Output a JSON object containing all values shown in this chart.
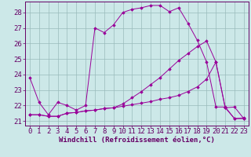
{
  "xlabel": "Windchill (Refroidissement éolien,°C)",
  "bg_color": "#cce8e8",
  "line_color": "#990099",
  "grid_color": "#99bbbb",
  "border_color": "#660066",
  "xlim": [
    -0.5,
    23.5
  ],
  "ylim": [
    20.7,
    28.7
  ],
  "xticks": [
    0,
    1,
    2,
    3,
    4,
    5,
    6,
    7,
    8,
    9,
    10,
    11,
    12,
    13,
    14,
    15,
    16,
    17,
    18,
    19,
    20,
    21,
    22,
    23
  ],
  "yticks": [
    21,
    22,
    23,
    24,
    25,
    26,
    27,
    28
  ],
  "line1_x": [
    0,
    1,
    2,
    3,
    4,
    5,
    6,
    7,
    8,
    9,
    10,
    11,
    12,
    13,
    14,
    15,
    16,
    17,
    18,
    19,
    20,
    21,
    22,
    23
  ],
  "line1_y": [
    23.8,
    22.2,
    21.4,
    22.2,
    22.0,
    21.7,
    22.0,
    27.0,
    26.7,
    27.2,
    28.0,
    28.2,
    28.3,
    28.45,
    28.45,
    28.05,
    28.3,
    27.3,
    26.2,
    24.8,
    21.9,
    21.9,
    21.15,
    21.2
  ],
  "line2_x": [
    0,
    1,
    2,
    3,
    4,
    5,
    6,
    7,
    8,
    9,
    10,
    11,
    12,
    13,
    14,
    15,
    16,
    17,
    18,
    19,
    20,
    21,
    22,
    23
  ],
  "line2_y": [
    21.4,
    21.4,
    21.3,
    21.3,
    21.5,
    21.55,
    21.65,
    21.7,
    21.8,
    21.85,
    21.95,
    22.05,
    22.15,
    22.25,
    22.4,
    22.5,
    22.65,
    22.9,
    23.2,
    23.7,
    24.8,
    21.85,
    21.15,
    21.15
  ],
  "line3_x": [
    0,
    1,
    2,
    3,
    4,
    5,
    6,
    7,
    8,
    9,
    10,
    11,
    12,
    13,
    14,
    15,
    16,
    17,
    18,
    19,
    20,
    21,
    22,
    23
  ],
  "line3_y": [
    21.4,
    21.4,
    21.3,
    21.3,
    21.5,
    21.55,
    21.65,
    21.7,
    21.8,
    21.85,
    22.1,
    22.5,
    22.9,
    23.35,
    23.8,
    24.35,
    24.9,
    25.35,
    25.8,
    26.15,
    24.8,
    21.85,
    21.9,
    21.15
  ],
  "tick_fontsize": 6.5,
  "xlabel_fontsize": 6.5
}
